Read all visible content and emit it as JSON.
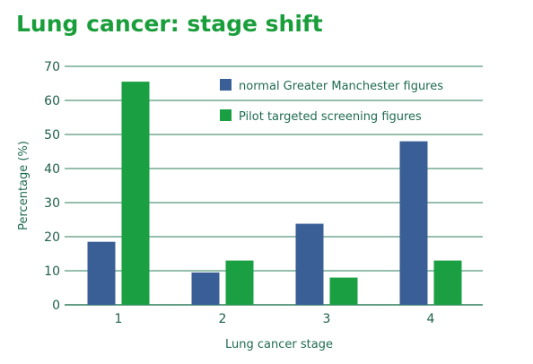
{
  "title": "Lung cancer: stage shift",
  "colors": {
    "title": "#1a9e3c",
    "grid": "#2e7d5b",
    "series1": "#3a5f96",
    "series2": "#1aa043",
    "text": "#1f6b4f"
  },
  "chart_data": {
    "type": "bar",
    "categories": [
      "1",
      "2",
      "3",
      "4"
    ],
    "series": [
      {
        "name": "normal Greater Manchester figures",
        "values": [
          18.5,
          9.5,
          23.8,
          48
        ]
      },
      {
        "name": "Pilot targeted screening figures",
        "values": [
          65.5,
          13,
          8,
          13
        ]
      }
    ],
    "xlabel": "Lung cancer stage",
    "ylabel": "Percentage (%)",
    "ylim": [
      0,
      70
    ],
    "yticks": [
      0,
      10,
      20,
      30,
      40,
      50,
      60,
      70
    ],
    "grid": true,
    "legend_position": "top-right"
  }
}
